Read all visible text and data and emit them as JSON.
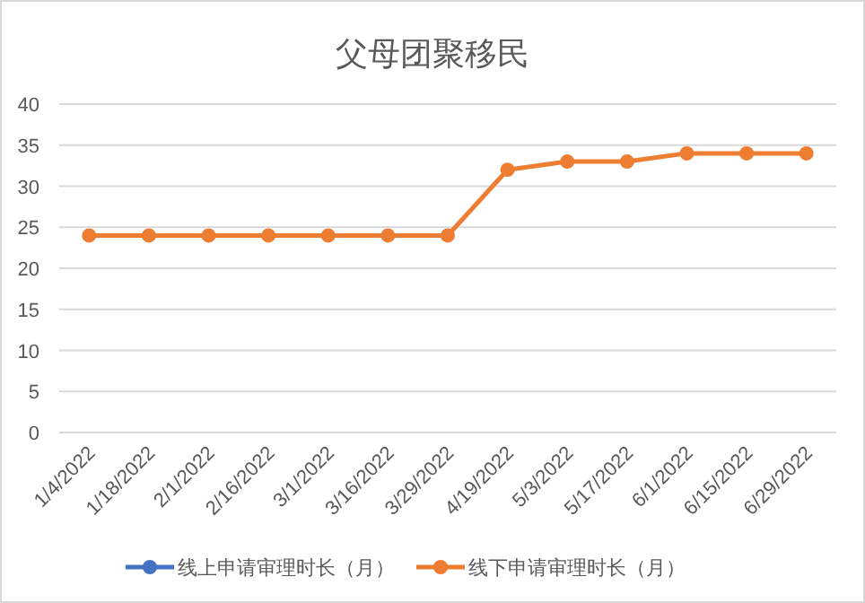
{
  "chart_data": {
    "type": "line",
    "title": "父母团聚移民",
    "categories": [
      "1/4/2022",
      "1/18/2022",
      "2/1/2022",
      "2/16/2022",
      "3/1/2022",
      "3/16/2022",
      "3/29/2022",
      "4/19/2022",
      "5/3/2022",
      "5/17/2022",
      "6/1/2022",
      "6/15/2022",
      "6/29/2022"
    ],
    "series": [
      {
        "name": "线上申请审理时长（月）",
        "color": "#4472c4",
        "values": [
          null,
          null,
          null,
          null,
          null,
          null,
          null,
          null,
          null,
          null,
          null,
          null,
          null
        ]
      },
      {
        "name": "线下申请审理时长（月）",
        "color": "#ed7d31",
        "values": [
          24,
          24,
          24,
          24,
          24,
          24,
          24,
          32,
          33,
          33,
          34,
          34,
          34
        ]
      }
    ],
    "ylim": [
      0,
      40
    ],
    "yticks": [
      0,
      5,
      10,
      15,
      20,
      25,
      30,
      35,
      40
    ],
    "grid": "y",
    "legend": "bottom",
    "marker": "circle",
    "line_style": "solid"
  }
}
